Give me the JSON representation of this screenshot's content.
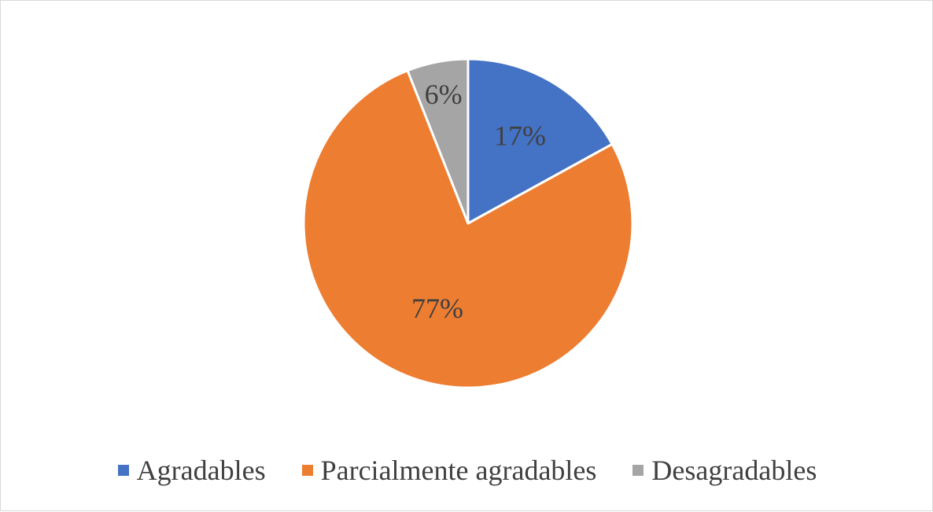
{
  "chart_data": {
    "type": "pie",
    "categories": [
      "Agradables",
      "Parcialmente agradables",
      "Desagradables"
    ],
    "values": [
      17,
      77,
      6
    ],
    "data_labels": [
      "17%",
      "77%",
      "6%"
    ],
    "colors": [
      "#4472C4",
      "#ED7D31",
      "#A5A5A5"
    ],
    "legend_position": "bottom",
    "start_angle": "top",
    "direction": "clockwise"
  }
}
